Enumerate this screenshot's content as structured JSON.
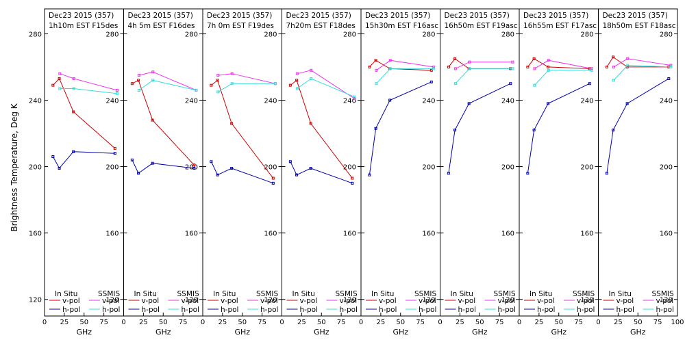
{
  "figure": {
    "ylabel": "Brightness Temperature, Deg K",
    "xlabel": "GHz",
    "yticks": [
      120,
      160,
      200,
      240,
      280
    ],
    "xticks": [
      0,
      25,
      50,
      75,
      100
    ],
    "ylim": [
      110,
      295
    ],
    "xlim": [
      0,
      100
    ],
    "legend": {
      "left_header": "In Situ",
      "right_header": "SSMIS",
      "vpol_label": "v-pol",
      "hpol_label": "h-pol"
    },
    "colors": {
      "insitu_v": "#cc0000",
      "insitu_h": "#0000aa",
      "ssmis_v": "#ee33ee",
      "ssmis_h": "#33dddd"
    }
  },
  "chart_data": [
    {
      "type": "line",
      "title": "Dec23 2015 (357)",
      "subtitle": "1h10m EST F15des",
      "series": [
        {
          "x": [
            10.7,
            18.7,
            36.5,
            89
          ],
          "values": [
            249,
            253,
            233,
            211
          ]
        },
        {
          "x": [
            10.7,
            18.7,
            36.5,
            89
          ],
          "values": [
            206,
            199,
            209,
            208
          ]
        },
        {
          "x": [
            19.35,
            37,
            91.65
          ],
          "values": [
            256,
            253,
            246
          ]
        },
        {
          "x": [
            19.35,
            37,
            91.65
          ],
          "values": [
            247,
            247,
            244
          ]
        }
      ]
    },
    {
      "type": "line",
      "title": "Dec23 2015 (357)",
      "subtitle": "4h 5m  EST F16des",
      "series": [
        {
          "x": [
            10.7,
            18.7,
            36.5,
            89
          ],
          "values": [
            250,
            252,
            228,
            201
          ]
        },
        {
          "x": [
            10.7,
            18.7,
            36.5,
            89
          ],
          "values": [
            204,
            196,
            202,
            199
          ]
        },
        {
          "x": [
            19.35,
            37,
            91.65
          ],
          "values": [
            255,
            257,
            246
          ]
        },
        {
          "x": [
            19.35,
            37,
            91.65
          ],
          "values": [
            246,
            252,
            246
          ]
        }
      ]
    },
    {
      "type": "line",
      "title": "Dec23 2015 (357)",
      "subtitle": "7h 0m  EST F19des",
      "series": [
        {
          "x": [
            10.7,
            18.7,
            36.5,
            89
          ],
          "values": [
            249,
            252,
            226,
            193
          ]
        },
        {
          "x": [
            10.7,
            18.7,
            36.5,
            89
          ],
          "values": [
            203,
            195,
            199,
            190
          ]
        },
        {
          "x": [
            19.35,
            37,
            91.65
          ],
          "values": [
            255,
            256,
            250
          ]
        },
        {
          "x": [
            19.35,
            37,
            91.65
          ],
          "values": [
            245,
            250,
            250
          ]
        }
      ]
    },
    {
      "type": "line",
      "title": "Dec23 2015 (357)",
      "subtitle": "7h20m  EST F18des",
      "series": [
        {
          "x": [
            10.7,
            18.7,
            36.5,
            89
          ],
          "values": [
            249,
            252,
            226,
            193
          ]
        },
        {
          "x": [
            10.7,
            18.7,
            36.5,
            89
          ],
          "values": [
            203,
            195,
            199,
            190
          ]
        },
        {
          "x": [
            19.35,
            37,
            91.65
          ],
          "values": [
            256,
            258,
            241
          ]
        },
        {
          "x": [
            19.35,
            37,
            91.65
          ],
          "values": [
            247,
            253,
            242
          ]
        }
      ]
    },
    {
      "type": "line",
      "title": "Dec23 2015 (357)",
      "subtitle": "15h30m EST F16asc",
      "series": [
        {
          "x": [
            10.7,
            18.7,
            36.5,
            89
          ],
          "values": [
            260,
            264,
            259,
            258
          ]
        },
        {
          "x": [
            10.7,
            18.7,
            36.5,
            89
          ],
          "values": [
            195,
            223,
            240,
            251
          ]
        },
        {
          "x": [
            19.35,
            37,
            91.65
          ],
          "values": [
            258,
            264,
            260
          ]
        },
        {
          "x": [
            19.35,
            37,
            91.65
          ],
          "values": [
            250,
            259,
            259
          ]
        }
      ]
    },
    {
      "type": "line",
      "title": "Dec23 2015 (357)",
      "subtitle": "16h50m EST F19asc",
      "series": [
        {
          "x": [
            10.7,
            18.7,
            36.5,
            89
          ],
          "values": [
            260,
            265,
            259,
            259
          ]
        },
        {
          "x": [
            10.7,
            18.7,
            36.5,
            89
          ],
          "values": [
            196,
            222,
            238,
            250
          ]
        },
        {
          "x": [
            19.35,
            37,
            91.65
          ],
          "values": [
            259,
            263,
            263
          ]
        },
        {
          "x": [
            19.35,
            37,
            91.65
          ],
          "values": [
            250,
            259,
            259
          ]
        }
      ]
    },
    {
      "type": "line",
      "title": "Dec23 2015 (357)",
      "subtitle": "16h55m EST F17asc",
      "series": [
        {
          "x": [
            10.7,
            18.7,
            36.5,
            89
          ],
          "values": [
            260,
            265,
            260,
            259
          ]
        },
        {
          "x": [
            10.7,
            18.7,
            36.5,
            89
          ],
          "values": [
            196,
            222,
            238,
            250
          ]
        },
        {
          "x": [
            19.35,
            37,
            91.65
          ],
          "values": [
            259,
            264,
            259
          ]
        },
        {
          "x": [
            19.35,
            37,
            91.65
          ],
          "values": [
            249,
            258,
            258
          ]
        }
      ]
    },
    {
      "type": "line",
      "title": "Dec23 2015 (357)",
      "subtitle": "18h50m EST F18asc",
      "series": [
        {
          "x": [
            10.7,
            18.7,
            36.5,
            89
          ],
          "values": [
            260,
            266,
            260,
            260
          ]
        },
        {
          "x": [
            10.7,
            18.7,
            36.5,
            89
          ],
          "values": [
            196,
            222,
            238,
            253
          ]
        },
        {
          "x": [
            19.35,
            37,
            91.65
          ],
          "values": [
            260,
            265,
            261
          ]
        },
        {
          "x": [
            19.35,
            37,
            91.65
          ],
          "values": [
            252,
            261,
            260
          ]
        }
      ]
    }
  ]
}
